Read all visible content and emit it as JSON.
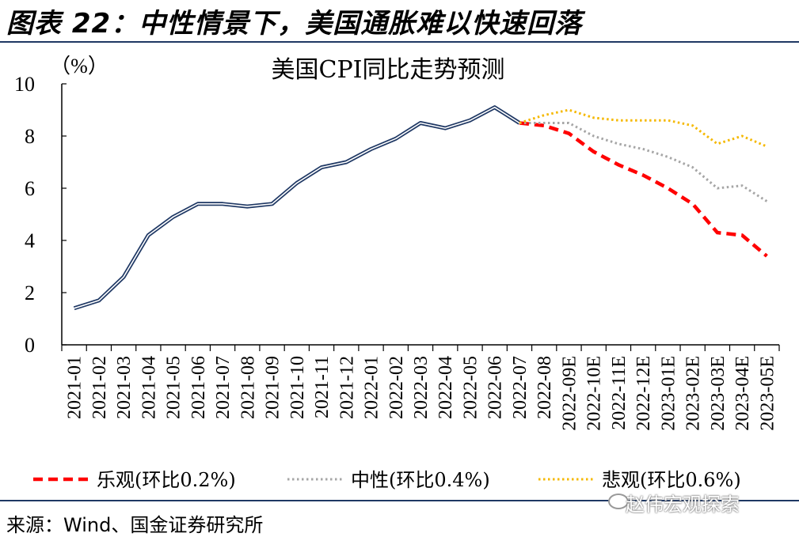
{
  "figure_title": "图表 22：中性情景下，美国通胀难以快速回落",
  "source": "来源：Wind、国金证券研究所",
  "watermark": "赵伟宏观探索",
  "colors": {
    "actual": "#1f3864",
    "optimistic": "#ff0000",
    "neutral": "#a6a6a6",
    "pessimistic": "#f5b800",
    "rule": "#1f3864"
  },
  "chart_data": {
    "type": "line",
    "title": "美国CPI同比走势预测",
    "ylabel": "（%）",
    "ylim": [
      0,
      10
    ],
    "yticks": [
      0,
      2,
      4,
      6,
      8,
      10
    ],
    "grid": false,
    "legend_position": "bottom",
    "categories": [
      "2021-01",
      "2021-02",
      "2021-03",
      "2021-04",
      "2021-05",
      "2021-06",
      "2021-07",
      "2021-08",
      "2021-09",
      "2021-10",
      "2021-11",
      "2021-12",
      "2022-01",
      "2022-02",
      "2022-03",
      "2022-04",
      "2022-05",
      "2022-06",
      "2022-07",
      "2022-08",
      "2022-09E",
      "2022-10E",
      "2022-11E",
      "2022-12E",
      "2023-01E",
      "2023-02E",
      "2023-03E",
      "2023-04E",
      "2023-05E"
    ],
    "series": [
      {
        "key": "actual",
        "name": "",
        "style": "double",
        "values": [
          1.4,
          1.7,
          2.6,
          4.2,
          4.9,
          5.4,
          5.4,
          5.3,
          5.4,
          6.2,
          6.8,
          7.0,
          7.5,
          7.9,
          8.5,
          8.3,
          8.6,
          9.1,
          8.5,
          null,
          null,
          null,
          null,
          null,
          null,
          null,
          null,
          null,
          null
        ]
      },
      {
        "key": "optimistic",
        "name": "乐观(环比0.2%)",
        "style": "dash",
        "values": [
          null,
          null,
          null,
          null,
          null,
          null,
          null,
          null,
          null,
          null,
          null,
          null,
          null,
          null,
          null,
          null,
          null,
          null,
          8.5,
          8.4,
          8.1,
          7.4,
          6.9,
          6.5,
          6.0,
          5.4,
          4.3,
          4.2,
          3.4
        ]
      },
      {
        "key": "neutral",
        "name": "中性(环比0.4%)",
        "style": "dot",
        "values": [
          null,
          null,
          null,
          null,
          null,
          null,
          null,
          null,
          null,
          null,
          null,
          null,
          null,
          null,
          null,
          null,
          null,
          null,
          8.5,
          8.5,
          8.5,
          8.0,
          7.7,
          7.5,
          7.2,
          6.8,
          6.0,
          6.1,
          5.5
        ]
      },
      {
        "key": "pessimistic",
        "name": "悲观(环比0.6%)",
        "style": "dot",
        "values": [
          null,
          null,
          null,
          null,
          null,
          null,
          null,
          null,
          null,
          null,
          null,
          null,
          null,
          null,
          null,
          null,
          null,
          null,
          8.5,
          8.8,
          9.0,
          8.7,
          8.6,
          8.6,
          8.6,
          8.4,
          7.7,
          8.0,
          7.6
        ]
      }
    ]
  }
}
